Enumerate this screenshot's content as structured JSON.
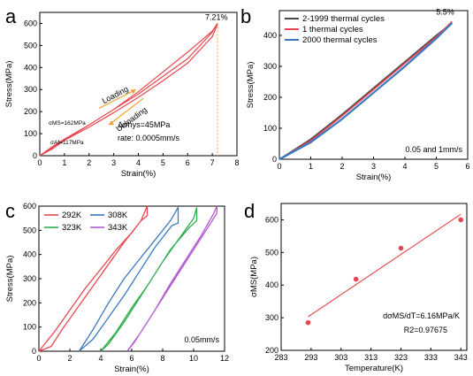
{
  "colors": {
    "red": "#e8474f",
    "dark": "#4a4a4a",
    "blue": "#3a78c2",
    "green": "#2fae4e",
    "purple": "#b45ad1",
    "orange": "#f0a030",
    "highlight": "#e83838"
  },
  "chart_data": [
    {
      "panel": "a",
      "type": "line",
      "xlabel": "Strain(%)",
      "ylabel": "Stress(MPa)",
      "xlim": [
        0,
        8
      ],
      "ylim": [
        0,
        650
      ],
      "xticks": [
        "0",
        "1",
        "2",
        "3",
        "4",
        "5",
        "6",
        "7",
        "8"
      ],
      "yticks": [
        "0",
        "100",
        "200",
        "300",
        "400",
        "500",
        "600"
      ],
      "series": [
        {
          "x": [
            0,
            0.5,
            1,
            2,
            3,
            4,
            5,
            6,
            7,
            7.21,
            7.21,
            7,
            6,
            5,
            4,
            3,
            2,
            1,
            0.5,
            0
          ],
          "y": [
            0,
            40,
            75,
            140,
            210,
            280,
            360,
            440,
            560,
            600,
            600,
            565,
            470,
            380,
            290,
            210,
            140,
            70,
            30,
            0
          ]
        },
        {
          "x": [
            0,
            0.5,
            1,
            2,
            3,
            4,
            5,
            6,
            7,
            7.21
          ],
          "y": [
            0,
            35,
            70,
            130,
            195,
            265,
            340,
            420,
            540,
            595
          ]
        }
      ],
      "annotations": [
        {
          "text": "7.21%",
          "x": 7.21,
          "y": 600
        },
        {
          "text": "Loading",
          "x": 3.1,
          "y": 270
        },
        {
          "text": "Unloading",
          "x": 3.6,
          "y": 140
        },
        {
          "text": "σMS=162MPa"
        },
        {
          "text": "σAf=117MPa"
        },
        {
          "text": "Δσhys=45MPa"
        },
        {
          "text": "rate: 0.0005mm/s"
        }
      ]
    },
    {
      "panel": "b",
      "type": "line",
      "xlabel": "Strain(%)",
      "ylabel": "Stress(MPa)",
      "xlim": [
        0,
        6
      ],
      "ylim": [
        0,
        480
      ],
      "xticks": [
        "0",
        "1",
        "2",
        "3",
        "4",
        "5",
        "6"
      ],
      "yticks": [
        "0",
        "100",
        "200",
        "300",
        "400"
      ],
      "legend": [
        "2-1999 thermal cycles",
        "1  thermal cycles",
        "2000  thermal cycles"
      ],
      "series": [
        {
          "name": "2-1999 thermal cycles",
          "x": [
            0,
            1,
            2,
            3,
            4,
            5,
            5.5
          ],
          "y": [
            0,
            65,
            145,
            230,
            315,
            400,
            440
          ]
        },
        {
          "name": "1  thermal cycles",
          "x": [
            0,
            1,
            2,
            3,
            4,
            5,
            5.5
          ],
          "y": [
            0,
            60,
            140,
            225,
            310,
            395,
            445
          ]
        },
        {
          "name": "2000  thermal cycles",
          "x": [
            0,
            1,
            2,
            3,
            4,
            5,
            5.5
          ],
          "y": [
            0,
            55,
            130,
            215,
            300,
            390,
            440
          ]
        }
      ],
      "annotations": [
        {
          "text": "5.5%",
          "x": 5.5,
          "y": 445
        },
        {
          "text": "0.05 and 1mm/s"
        }
      ]
    },
    {
      "panel": "c",
      "type": "line",
      "xlabel": "Strain(%)",
      "ylabel": "Stress(MPa)",
      "xlim": [
        0,
        12
      ],
      "ylim": [
        0,
        600
      ],
      "xticks": [
        "0",
        "2",
        "4",
        "6",
        "8",
        "10",
        "12"
      ],
      "yticks": [
        "0",
        "100",
        "200",
        "300",
        "400",
        "500",
        "600"
      ],
      "legend": [
        "292K",
        "308K",
        "323K",
        "343K"
      ],
      "series": [
        {
          "name": "292K",
          "x": [
            0,
            1,
            2,
            3,
            4,
            5,
            6,
            6.6,
            7,
            7,
            6.6,
            5.5,
            4.5,
            3.5,
            2.5,
            1.5,
            0.8,
            0
          ],
          "y": [
            0,
            80,
            170,
            260,
            340,
            420,
            490,
            540,
            600,
            560,
            540,
            450,
            360,
            270,
            180,
            90,
            20,
            0
          ]
        },
        {
          "name": "308K",
          "x": [
            2.6,
            3.5,
            4.5,
            5.5,
            6.5,
            7.5,
            8.5,
            9,
            9,
            8.6,
            7.5,
            6.5,
            5.5,
            4.5,
            3.5,
            2.6
          ],
          "y": [
            0,
            90,
            200,
            300,
            380,
            460,
            540,
            595,
            530,
            520,
            430,
            330,
            230,
            140,
            50,
            0
          ]
        },
        {
          "name": "323K",
          "x": [
            4.0,
            5,
            6,
            7,
            8,
            9,
            10,
            10.2,
            10.2,
            9.7,
            8.5,
            7.5,
            6.5,
            5.5,
            4.5,
            4.0
          ],
          "y": [
            0,
            80,
            180,
            270,
            370,
            460,
            550,
            595,
            540,
            510,
            420,
            320,
            220,
            120,
            30,
            0
          ]
        },
        {
          "name": "343K",
          "x": [
            5.7,
            6.5,
            7.5,
            8.5,
            9.5,
            10.5,
            11.3,
            11.5,
            11.5,
            11,
            10,
            9,
            8,
            7,
            6.2,
            5.7
          ],
          "y": [
            0,
            70,
            170,
            280,
            380,
            480,
            570,
            600,
            570,
            520,
            420,
            320,
            220,
            120,
            40,
            0
          ]
        }
      ],
      "annotations": [
        {
          "text": "0.05mm/s"
        }
      ]
    },
    {
      "panel": "d",
      "type": "scatter",
      "xlabel": "Temperature(K)",
      "ylabel": "σMS(MPa)",
      "xlim": [
        283,
        345
      ],
      "ylim": [
        200,
        650
      ],
      "xticks": [
        "283",
        "293",
        "303",
        "313",
        "323",
        "333",
        "343"
      ],
      "yticks": [
        "200",
        "300",
        "400",
        "500",
        "600"
      ],
      "x": [
        292,
        308,
        323,
        343
      ],
      "y": [
        285,
        418,
        513,
        600
      ],
      "fit": {
        "x": [
          292,
          343
        ],
        "y": [
          303,
          617
        ]
      },
      "annotations": [
        {
          "text": "dσMS/dT=6.16MPa/K"
        },
        {
          "text": "R2=0.97675"
        }
      ]
    }
  ]
}
